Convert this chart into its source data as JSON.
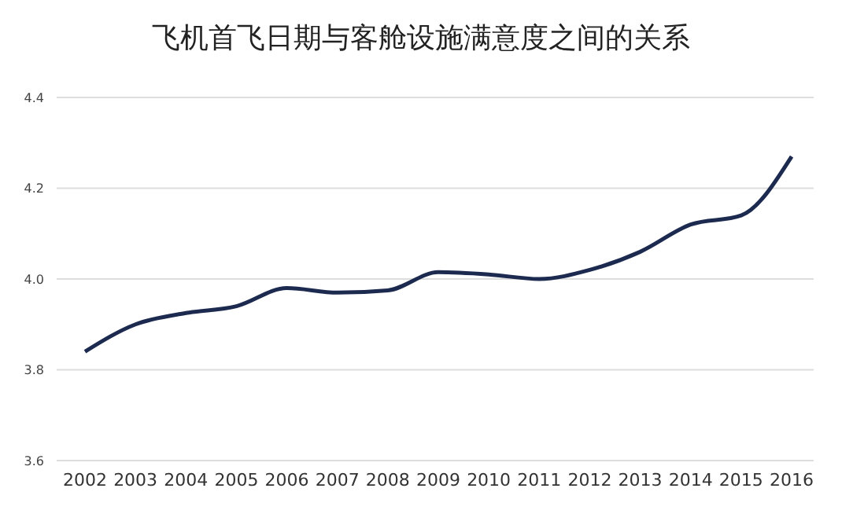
{
  "chart_data": {
    "type": "line",
    "title": "飞机首飞日期与客舱设施满意度之间的关系",
    "categories": [
      "2002",
      "2003",
      "2004",
      "2005",
      "2006",
      "2007",
      "2008",
      "2009",
      "2010",
      "2011",
      "2012",
      "2013",
      "2014",
      "2015",
      "2016"
    ],
    "series": [
      {
        "color": "#1c2a4f",
        "values": [
          3.84,
          3.9,
          3.925,
          3.94,
          3.98,
          3.97,
          3.975,
          4.015,
          4.01,
          4.0,
          4.02,
          4.06,
          4.12,
          4.14,
          4.27
        ]
      }
    ],
    "ylim": [
      3.6,
      4.4
    ],
    "yticks": [
      {
        "value": 3.6,
        "label": "3.6"
      },
      {
        "value": 3.8,
        "label": "3.8"
      },
      {
        "value": 4.0,
        "label": "4.0"
      },
      {
        "value": 4.2,
        "label": "4.2"
      },
      {
        "value": 4.4,
        "label": "4.4"
      }
    ],
    "grid": "y",
    "marker": "none",
    "line_style": "solid"
  }
}
